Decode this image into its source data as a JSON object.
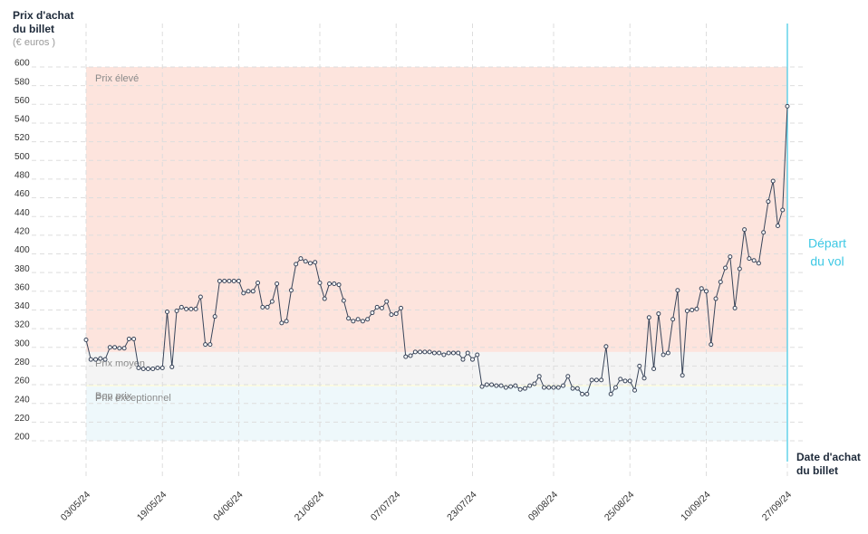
{
  "chart_data": {
    "type": "line",
    "y_title": [
      "Prix d'achat",
      "du billet"
    ],
    "y_unit": "(€ euros )",
    "x_title": [
      "Date d'achat",
      "du billet"
    ],
    "annotation": {
      "text": [
        "Départ",
        "du vol"
      ],
      "color": "#3ec8e4"
    },
    "ylim": [
      200,
      600
    ],
    "yticks": [
      600,
      580,
      560,
      540,
      520,
      500,
      480,
      460,
      440,
      420,
      400,
      380,
      360,
      340,
      320,
      300,
      280,
      260,
      240,
      220,
      200
    ],
    "grid": true,
    "bands": [
      {
        "label": "Prix élevé",
        "from": 295,
        "to": 600,
        "color": "#fde4dd"
      },
      {
        "label": "Prix moyen",
        "from": 260,
        "to": 295,
        "color": "#f4f4f4"
      },
      {
        "label": "Bon prix",
        "from": 258,
        "to": 260,
        "color": "#fbfbe2"
      },
      {
        "label": "Prix exceptionnel",
        "from": 200,
        "to": 258,
        "color": "#eef8fb"
      }
    ],
    "categories": [
      "03/05/24",
      null,
      null,
      null,
      null,
      null,
      null,
      null,
      null,
      null,
      null,
      null,
      null,
      null,
      null,
      null,
      "19/05/24",
      null,
      null,
      null,
      null,
      null,
      null,
      null,
      null,
      null,
      null,
      null,
      null,
      null,
      null,
      null,
      "04/06/24",
      null,
      null,
      null,
      null,
      null,
      null,
      null,
      null,
      null,
      null,
      null,
      null,
      null,
      null,
      null,
      null,
      "21/06/24",
      null,
      null,
      null,
      null,
      null,
      null,
      null,
      null,
      null,
      null,
      null,
      null,
      null,
      null,
      null,
      "07/07/24",
      null,
      null,
      null,
      null,
      null,
      null,
      null,
      null,
      null,
      null,
      null,
      null,
      null,
      null,
      null,
      "23/07/24",
      null,
      null,
      null,
      null,
      null,
      null,
      null,
      null,
      null,
      null,
      null,
      null,
      null,
      null,
      null,
      null,
      "09/08/24",
      null,
      null,
      null,
      null,
      null,
      null,
      null,
      null,
      null,
      null,
      null,
      null,
      null,
      null,
      null,
      "25/08/24",
      null,
      null,
      null,
      null,
      null,
      null,
      null,
      null,
      null,
      null,
      null,
      null,
      null,
      null,
      null,
      "10/09/24",
      null,
      null,
      null,
      null,
      null,
      null,
      null,
      null,
      null,
      null,
      null,
      null,
      null,
      null,
      null,
      null,
      "27/09/24"
    ],
    "series": [
      {
        "color": "#39455a",
        "values": [
          308,
          287,
          287,
          288,
          287,
          300,
          300,
          299,
          299,
          309,
          309,
          278,
          277,
          277,
          277,
          278,
          278,
          338,
          279,
          339,
          343,
          341,
          341,
          341,
          354,
          303,
          303,
          333,
          371,
          371,
          371,
          371,
          371,
          358,
          360,
          360,
          369,
          343,
          343,
          349,
          368,
          326,
          328,
          361,
          389,
          395,
          392,
          390,
          391,
          369,
          352,
          368,
          368,
          367,
          350,
          331,
          328,
          330,
          328,
          330,
          337,
          343,
          342,
          349,
          335,
          336,
          342,
          290,
          291,
          295,
          295,
          295,
          295,
          294,
          294,
          292,
          294,
          294,
          294,
          287,
          294,
          287,
          292,
          258,
          260,
          260,
          259,
          259,
          257,
          258,
          259,
          255,
          256,
          259,
          261,
          269,
          257,
          257,
          257,
          257,
          259,
          269,
          256,
          256,
          250,
          250,
          265,
          265,
          265,
          301,
          250,
          257,
          266,
          264,
          264,
          254,
          280,
          267,
          332,
          277,
          336,
          292,
          294,
          330,
          361,
          270,
          339,
          340,
          341,
          363,
          360,
          303,
          352,
          370,
          385,
          397,
          342,
          384,
          426,
          395,
          393,
          390,
          423,
          456,
          478,
          430,
          447,
          558
        ]
      }
    ]
  }
}
